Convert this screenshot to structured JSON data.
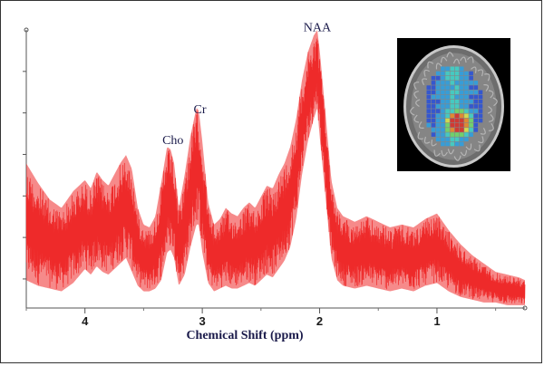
{
  "chart_data": {
    "type": "line",
    "title": "",
    "xlabel": "Chemical Shift (ppm)",
    "ylabel": "",
    "x_reversed": true,
    "xlim": [
      4.5,
      0.25
    ],
    "ylim": [
      0,
      1
    ],
    "xticks": [
      4,
      3,
      2,
      1
    ],
    "grid": false,
    "series_color": "#ee2a2a",
    "annotations": [
      {
        "text": "NAA",
        "x": 2.02,
        "y": 0.975
      },
      {
        "text": "Cr",
        "x": 3.02,
        "y": 0.68
      },
      {
        "text": "Cho",
        "x": 3.25,
        "y": 0.57
      }
    ],
    "series": [
      {
        "x": [
          4.5,
          4.4,
          4.3,
          4.2,
          4.1,
          4.0,
          3.95,
          3.9,
          3.85,
          3.8,
          3.75,
          3.7,
          3.65,
          3.6,
          3.55,
          3.5,
          3.45,
          3.4,
          3.35,
          3.3,
          3.27,
          3.24,
          3.2,
          3.15,
          3.1,
          3.05,
          3.03,
          3.0,
          2.95,
          2.9,
          2.85,
          2.8,
          2.75,
          2.7,
          2.65,
          2.6,
          2.55,
          2.5,
          2.45,
          2.4,
          2.35,
          2.3,
          2.25,
          2.2,
          2.15,
          2.1,
          2.05,
          2.02,
          2.0,
          1.95,
          1.9,
          1.85,
          1.8,
          1.7,
          1.6,
          1.5,
          1.4,
          1.3,
          1.2,
          1.1,
          1.0,
          0.9,
          0.8,
          0.7,
          0.6,
          0.5,
          0.4,
          0.3,
          0.25
        ],
        "upper": [
          0.52,
          0.45,
          0.39,
          0.36,
          0.42,
          0.46,
          0.43,
          0.49,
          0.46,
          0.44,
          0.48,
          0.52,
          0.55,
          0.5,
          0.36,
          0.3,
          0.29,
          0.33,
          0.45,
          0.58,
          0.57,
          0.52,
          0.36,
          0.48,
          0.62,
          0.72,
          0.71,
          0.6,
          0.38,
          0.3,
          0.32,
          0.36,
          0.34,
          0.33,
          0.36,
          0.38,
          0.36,
          0.4,
          0.44,
          0.43,
          0.48,
          0.52,
          0.58,
          0.68,
          0.82,
          0.92,
          0.98,
          1.0,
          0.93,
          0.7,
          0.46,
          0.36,
          0.33,
          0.31,
          0.33,
          0.31,
          0.29,
          0.3,
          0.29,
          0.32,
          0.34,
          0.28,
          0.23,
          0.19,
          0.16,
          0.13,
          0.12,
          0.11,
          0.1
        ],
        "lower": [
          0.1,
          0.08,
          0.07,
          0.06,
          0.09,
          0.14,
          0.12,
          0.15,
          0.13,
          0.12,
          0.14,
          0.16,
          0.18,
          0.13,
          0.08,
          0.06,
          0.06,
          0.07,
          0.1,
          0.2,
          0.21,
          0.18,
          0.08,
          0.12,
          0.22,
          0.3,
          0.3,
          0.2,
          0.09,
          0.06,
          0.07,
          0.08,
          0.07,
          0.07,
          0.08,
          0.09,
          0.08,
          0.1,
          0.12,
          0.11,
          0.14,
          0.17,
          0.22,
          0.32,
          0.48,
          0.6,
          0.68,
          0.72,
          0.62,
          0.4,
          0.18,
          0.1,
          0.08,
          0.07,
          0.08,
          0.07,
          0.06,
          0.07,
          0.06,
          0.08,
          0.09,
          0.06,
          0.04,
          0.03,
          0.02,
          0.02,
          0.01,
          0.01,
          0.01
        ]
      }
    ],
    "inset_image": {
      "description_icon": "brain-mri-axial-slice-icon",
      "grid_colors": [
        "#2c52d6",
        "#2fa0e0",
        "#3fd0c8",
        "#6fd86a",
        "#d8e24a",
        "#e88a2a",
        "#d8322a"
      ]
    }
  }
}
